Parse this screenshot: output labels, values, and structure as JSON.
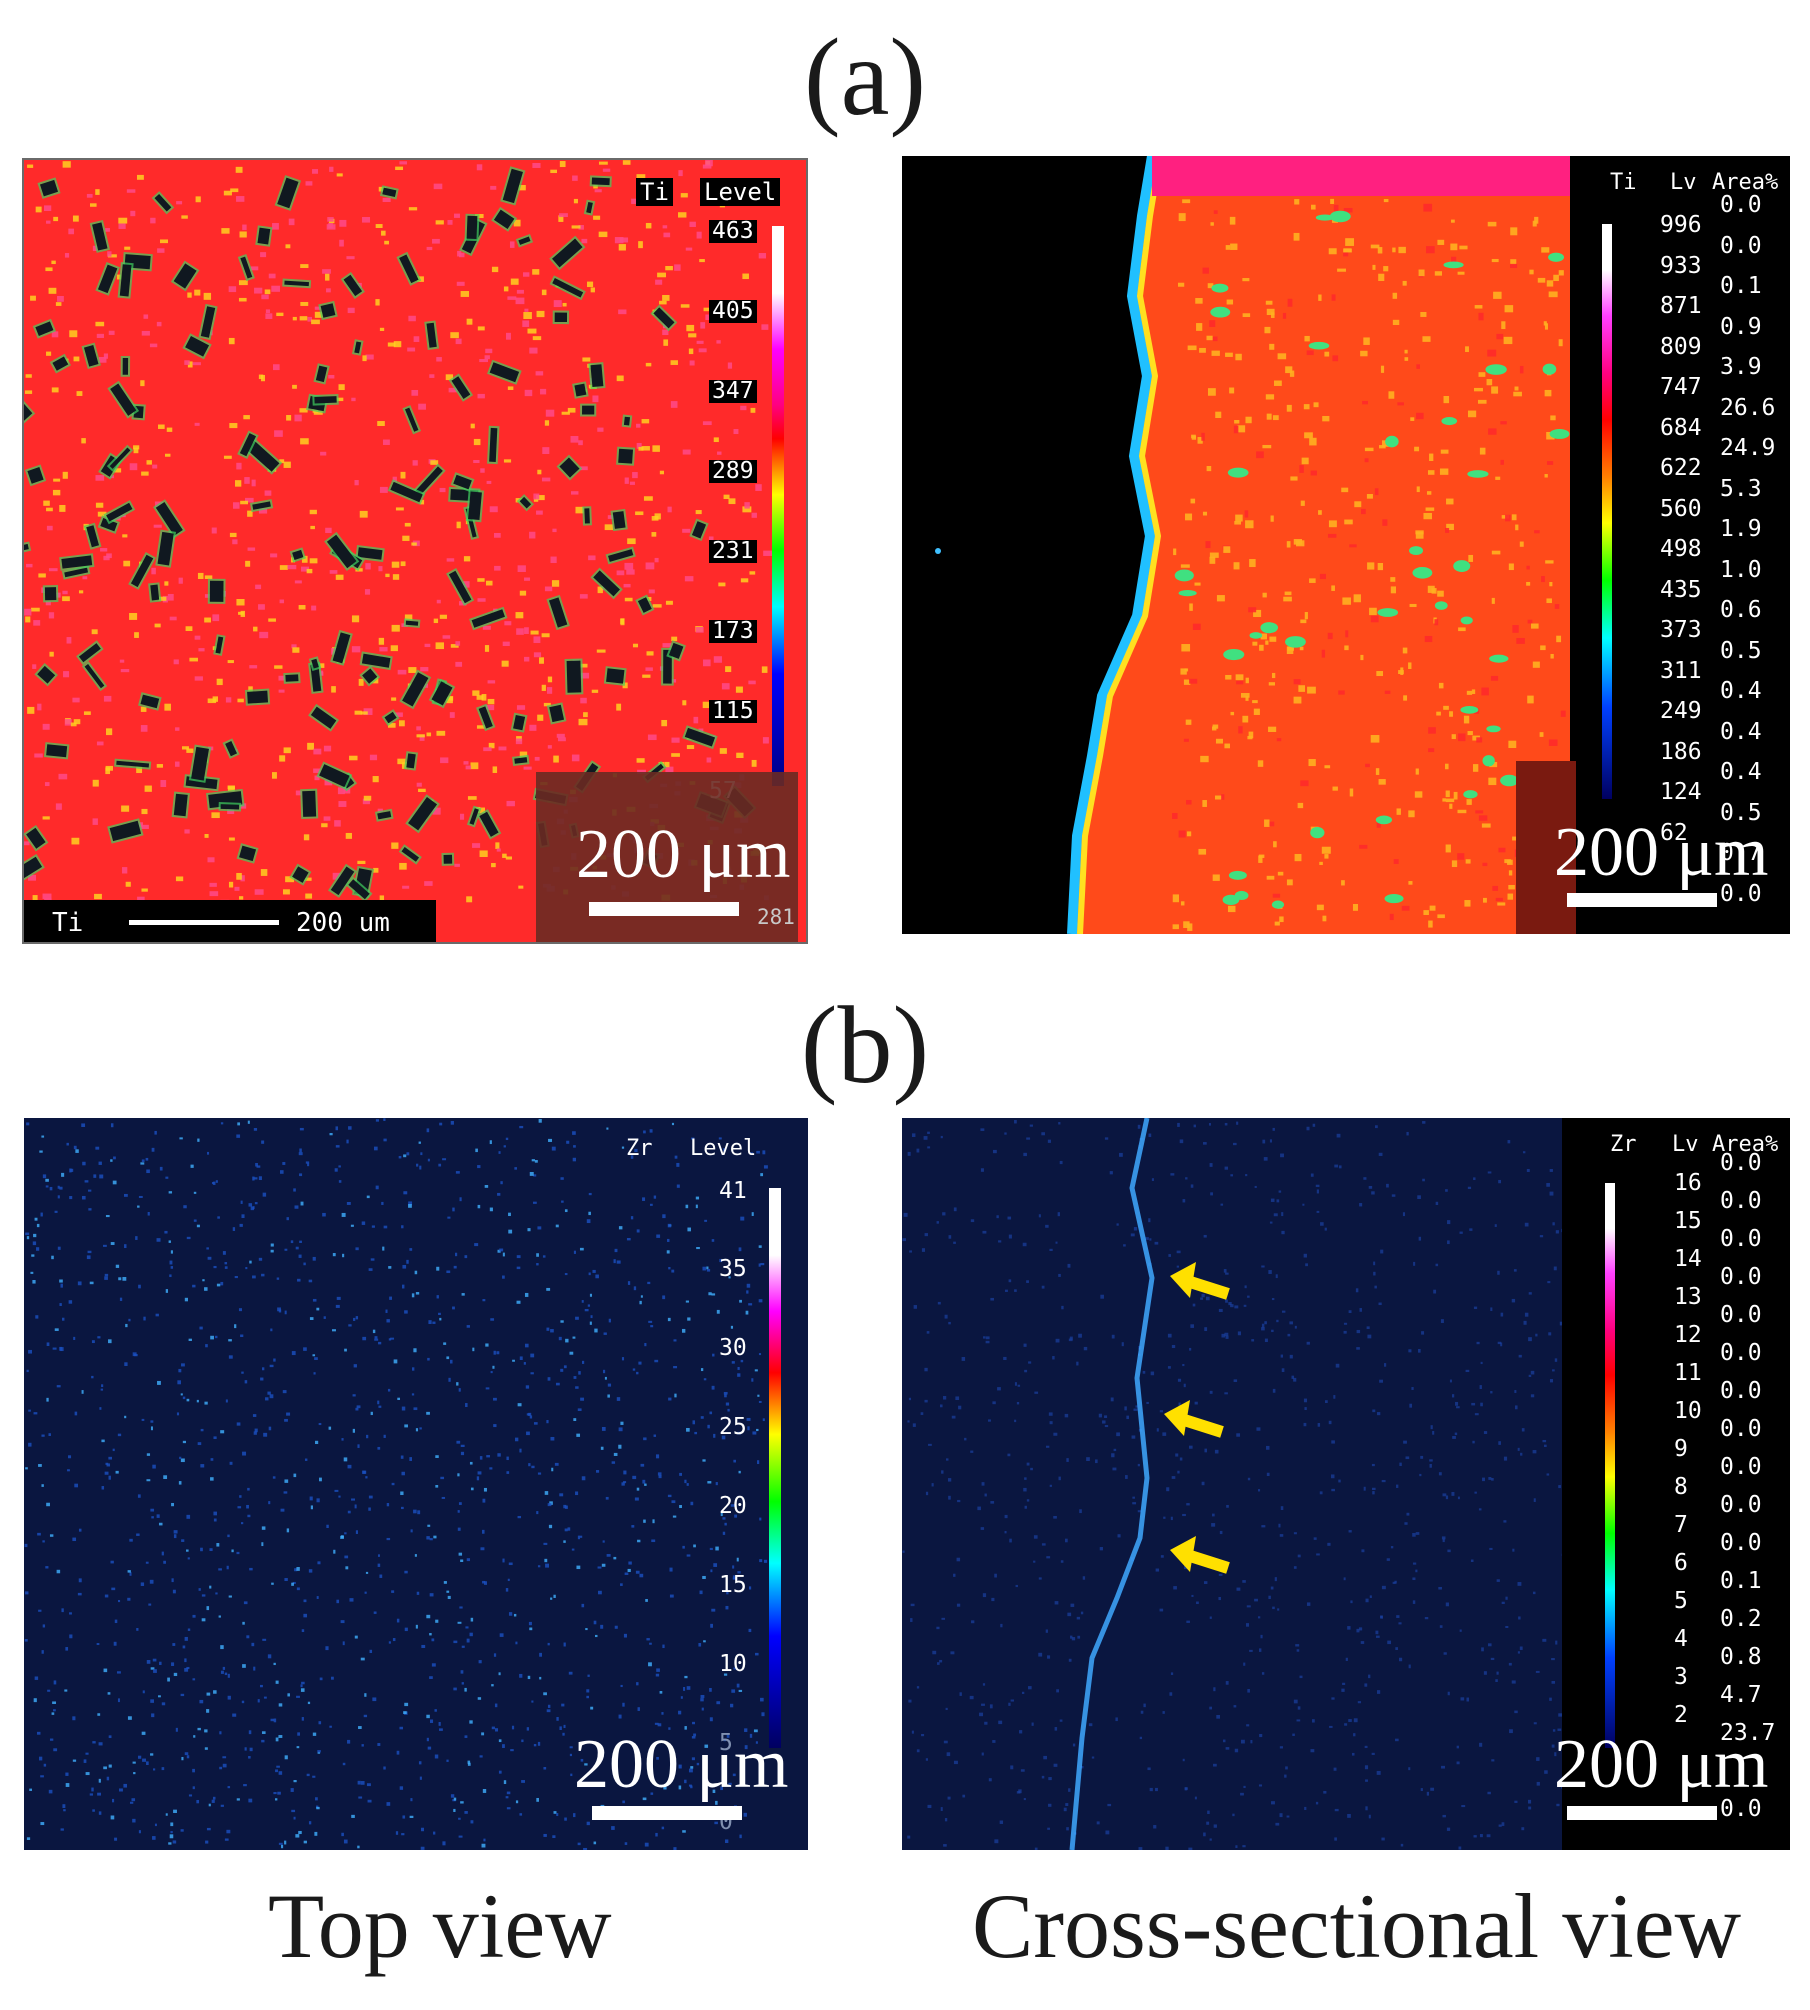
{
  "figure": {
    "panel_a_label": "(a)",
    "panel_b_label": "(b)",
    "caption_left": "Top view",
    "caption_right": "Cross-sectional  view"
  },
  "a_top": {
    "element": "Ti",
    "header": "Level",
    "ticks": [
      "463",
      "405",
      "347",
      "289",
      "231",
      "173",
      "115",
      "57"
    ],
    "bottom_tick": "281",
    "bar_element": "Ti",
    "bar_text": "200 um",
    "scale_label": "200 μm"
  },
  "a_cross": {
    "element": "Ti",
    "header_lv": "Lv",
    "header_area": "Area%",
    "levels": [
      "996",
      "933",
      "871",
      "809",
      "747",
      "684",
      "622",
      "560",
      "498",
      "435",
      "373",
      "311",
      "249",
      "186",
      "124",
      "62"
    ],
    "areas": [
      "0.0",
      "0.0",
      "0.1",
      "0.9",
      "3.9",
      "26.6",
      "24.9",
      "5.3",
      "1.9",
      "1.0",
      "0.6",
      "0.5",
      "0.4",
      "0.4",
      "0.4",
      "0.5",
      "0.7",
      "0.0"
    ],
    "scale_label": "200 μm"
  },
  "b_top": {
    "element": "Zr",
    "header": "Level",
    "ticks": [
      "41",
      "35",
      "30",
      "25",
      "20",
      "15",
      "10",
      "5",
      "0"
    ],
    "scale_label": "200 μm"
  },
  "b_cross": {
    "element": "Zr",
    "header_lv": "Lv",
    "header_area": "Area%",
    "levels": [
      "16",
      "15",
      "14",
      "13",
      "12",
      "11",
      "10",
      "9",
      "8",
      "7",
      "6",
      "5",
      "4",
      "3",
      "2"
    ],
    "areas": [
      "0.0",
      "0.0",
      "0.0",
      "0.0",
      "0.0",
      "0.0",
      "0.0",
      "0.0",
      "0.0",
      "0.0",
      "0.0",
      "0.1",
      "0.2",
      "0.8",
      "4.7",
      "23.7",
      "",
      "0.0"
    ],
    "scale_label": "200 μm"
  },
  "colors": {
    "ti_red": "#ff2020",
    "ti_pink": "#ff3070",
    "ti_orange": "#ff5a1a",
    "zr_bg": "#0a1640",
    "zr_speck": "#3aa0ff",
    "arrow": "#ffe000"
  }
}
